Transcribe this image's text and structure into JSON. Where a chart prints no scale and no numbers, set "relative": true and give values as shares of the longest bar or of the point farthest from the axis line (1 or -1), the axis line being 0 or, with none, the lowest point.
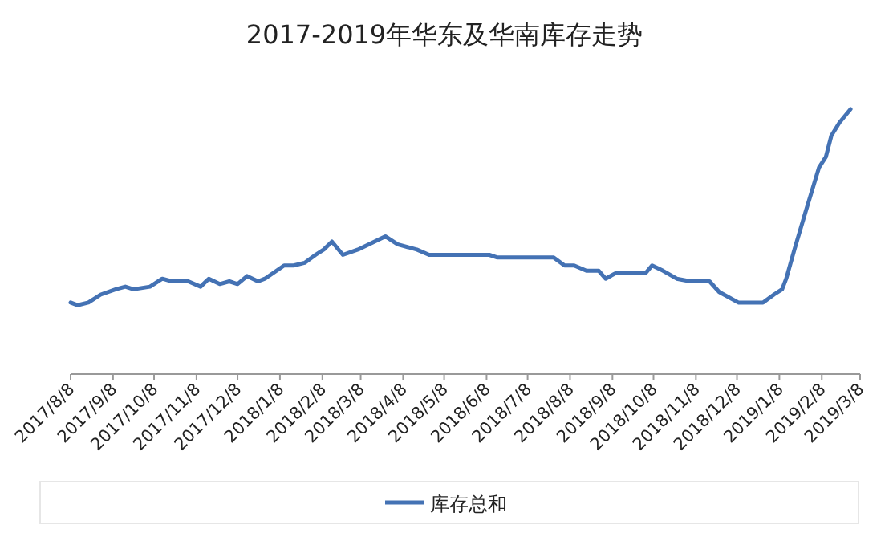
{
  "chart_data": {
    "type": "line",
    "title": "2017-2019年华东及华南库存走势",
    "relative": true,
    "legend": "bottom",
    "xlim": [
      "2017-08-08",
      "2019-03-08"
    ],
    "xticks": [
      {
        "value": "2017-08-08",
        "label": "2017/8/8"
      },
      {
        "value": "2017-09-08",
        "label": "2017/9/8"
      },
      {
        "value": "2017-10-08",
        "label": "2017/10/8"
      },
      {
        "value": "2017-11-08",
        "label": "2017/11/8"
      },
      {
        "value": "2017-12-08",
        "label": "2017/12/8"
      },
      {
        "value": "2018-01-08",
        "label": "2018/1/8"
      },
      {
        "value": "2018-02-08",
        "label": "2018/2/8"
      },
      {
        "value": "2018-03-08",
        "label": "2018/3/8"
      },
      {
        "value": "2018-04-08",
        "label": "2018/4/8"
      },
      {
        "value": "2018-05-08",
        "label": "2018/5/8"
      },
      {
        "value": "2018-06-08",
        "label": "2018/6/8"
      },
      {
        "value": "2018-07-08",
        "label": "2018/7/8"
      },
      {
        "value": "2018-08-08",
        "label": "2018/8/8"
      },
      {
        "value": "2018-09-08",
        "label": "2018/9/8"
      },
      {
        "value": "2018-10-08",
        "label": "2018/10/8"
      },
      {
        "value": "2018-11-08",
        "label": "2018/11/8"
      },
      {
        "value": "2018-12-08",
        "label": "2018/12/8"
      },
      {
        "value": "2019-01-08",
        "label": "2019/1/8"
      },
      {
        "value": "2019-02-08",
        "label": "2019/2/8"
      },
      {
        "value": "2019-03-08",
        "label": "2019/3/8"
      }
    ],
    "x": [
      "2017-08-08",
      "2017-08-13",
      "2017-08-21",
      "2017-08-30",
      "2017-09-10",
      "2017-09-17",
      "2017-09-23",
      "2017-10-05",
      "2017-10-14",
      "2017-10-21",
      "2017-11-02",
      "2017-11-11",
      "2017-11-17",
      "2017-11-25",
      "2017-12-02",
      "2017-12-08",
      "2017-12-15",
      "2017-12-23",
      "2017-12-28",
      "2018-01-11",
      "2018-01-18",
      "2018-01-26",
      "2018-02-03",
      "2018-02-09",
      "2018-02-15",
      "2018-02-23",
      "2018-03-06",
      "2018-03-26",
      "2018-04-04",
      "2018-04-18",
      "2018-04-27",
      "2018-05-15",
      "2018-06-10",
      "2018-06-16",
      "2018-07-27",
      "2018-08-04",
      "2018-08-11",
      "2018-08-20",
      "2018-08-29",
      "2018-09-03",
      "2018-09-10",
      "2018-09-15",
      "2018-10-02",
      "2018-10-07",
      "2018-10-15",
      "2018-10-25",
      "2018-11-04",
      "2018-11-18",
      "2018-11-25",
      "2018-12-09",
      "2018-12-27",
      "2019-01-04",
      "2019-01-10",
      "2019-01-13",
      "2019-01-19",
      "2019-01-27",
      "2019-02-06",
      "2019-02-11",
      "2019-02-15",
      "2019-02-21",
      "2019-03-01"
    ],
    "series": [
      {
        "name": "库存总和",
        "color": "#4472b4",
        "values": [
          0.27,
          0.26,
          0.27,
          0.3,
          0.32,
          0.33,
          0.32,
          0.33,
          0.36,
          0.35,
          0.35,
          0.33,
          0.36,
          0.34,
          0.35,
          0.34,
          0.37,
          0.35,
          0.36,
          0.41,
          0.41,
          0.42,
          0.45,
          0.47,
          0.5,
          0.45,
          0.47,
          0.52,
          0.49,
          0.47,
          0.45,
          0.45,
          0.45,
          0.44,
          0.44,
          0.41,
          0.41,
          0.39,
          0.39,
          0.36,
          0.38,
          0.38,
          0.38,
          0.41,
          0.39,
          0.36,
          0.35,
          0.35,
          0.31,
          0.27,
          0.27,
          0.3,
          0.32,
          0.36,
          0.47,
          0.61,
          0.78,
          0.82,
          0.9,
          0.95,
          1
        ]
      }
    ]
  }
}
